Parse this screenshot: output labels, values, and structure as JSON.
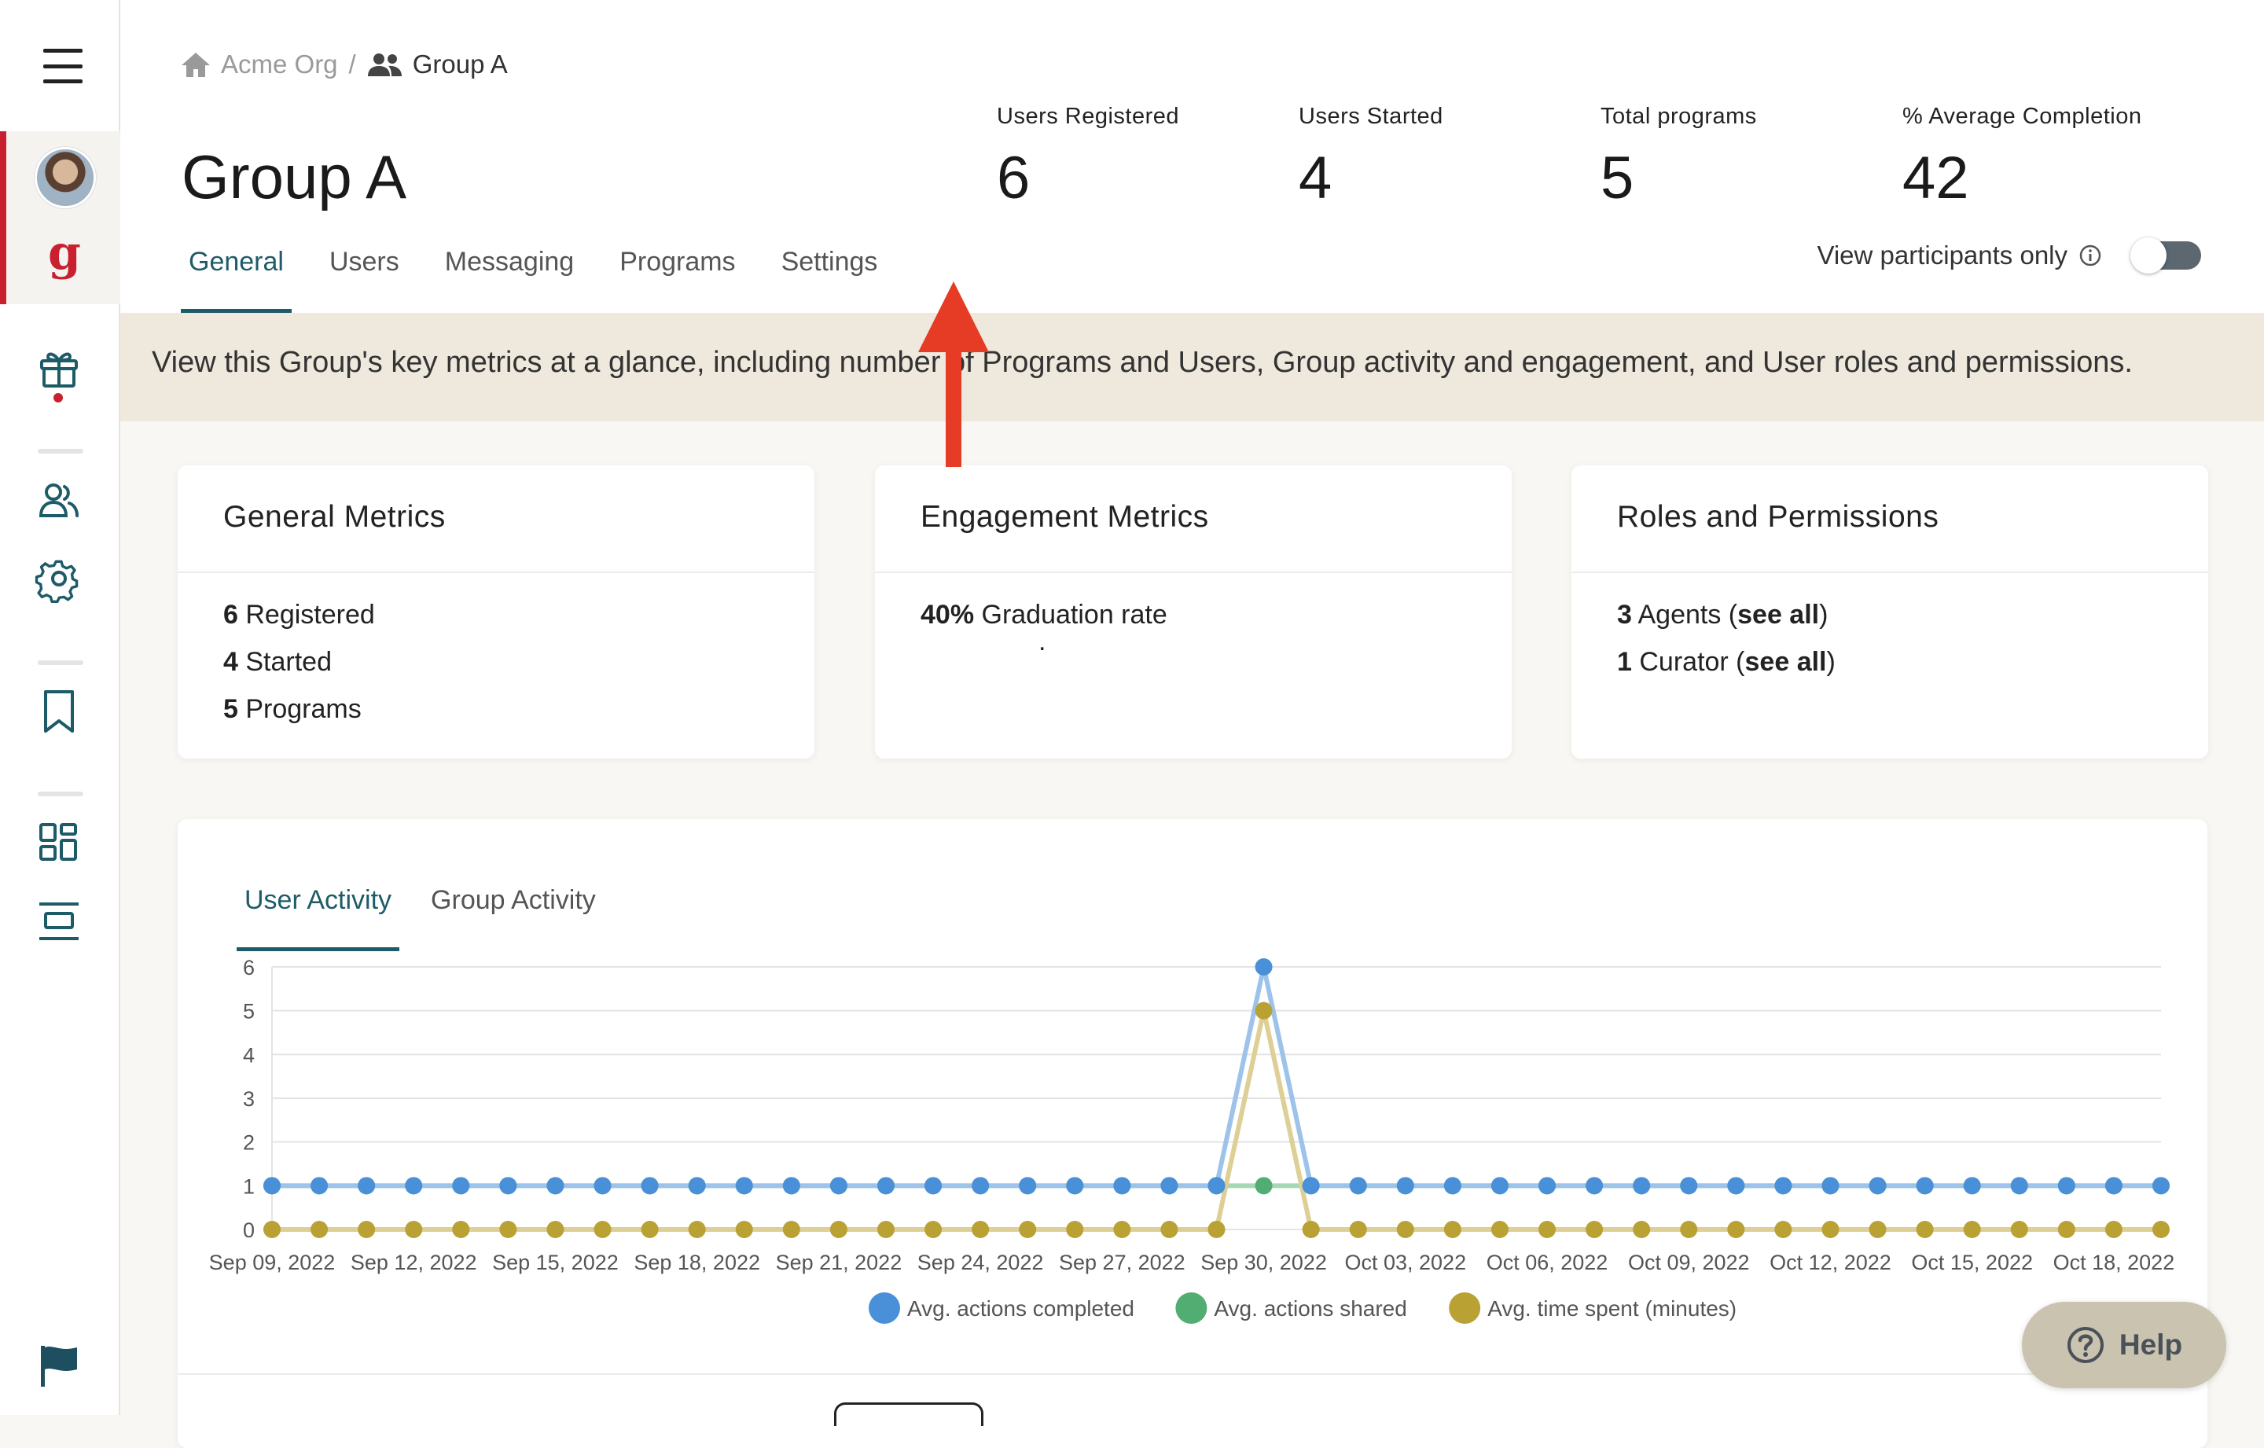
{
  "breadcrumb": {
    "org": "Acme Org",
    "separator": "/",
    "group": "Group A"
  },
  "page": {
    "title": "Group A"
  },
  "stats": [
    {
      "label": "Users Registered",
      "value": "6"
    },
    {
      "label": "Users Started",
      "value": "4"
    },
    {
      "label": "Total programs",
      "value": "5"
    },
    {
      "label": "% Average Completion",
      "value": "42"
    }
  ],
  "tabs": [
    {
      "label": "General",
      "active": true
    },
    {
      "label": "Users",
      "active": false
    },
    {
      "label": "Messaging",
      "active": false
    },
    {
      "label": "Programs",
      "active": false
    },
    {
      "label": "Settings",
      "active": false
    }
  ],
  "view_toggle": {
    "label": "View participants only",
    "on": false
  },
  "banner": {
    "text": "View this Group's key metrics at a glance, including number of Programs and Users, Group activity and engagement, and User roles and permissions."
  },
  "cards": {
    "general": {
      "title": "General Metrics",
      "rows": [
        {
          "num": "6",
          "text": " Registered"
        },
        {
          "num": "4",
          "text": " Started"
        },
        {
          "num": "5",
          "text": " Programs"
        }
      ]
    },
    "engagement": {
      "title": "Engagement Metrics",
      "rows": [
        {
          "num": "40%",
          "text": " Graduation rate"
        }
      ],
      "dot": "."
    },
    "roles": {
      "title": "Roles and Permissions",
      "rows": [
        {
          "num": "3",
          "pre": " Agents (",
          "link": "see all",
          "post": ")"
        },
        {
          "num": "1",
          "pre": " Curator (",
          "link": "see all",
          "post": ")"
        }
      ]
    }
  },
  "chart_tabs": [
    {
      "label": "User Activity",
      "active": true
    },
    {
      "label": "Group Activity",
      "active": false
    }
  ],
  "chart_data": {
    "type": "line",
    "x": [
      "Sep 09, 2022",
      "Sep 10, 2022",
      "Sep 11, 2022",
      "Sep 12, 2022",
      "Sep 13, 2022",
      "Sep 14, 2022",
      "Sep 15, 2022",
      "Sep 16, 2022",
      "Sep 17, 2022",
      "Sep 18, 2022",
      "Sep 19, 2022",
      "Sep 20, 2022",
      "Sep 21, 2022",
      "Sep 22, 2022",
      "Sep 23, 2022",
      "Sep 24, 2022",
      "Sep 25, 2022",
      "Sep 26, 2022",
      "Sep 27, 2022",
      "Sep 28, 2022",
      "Sep 29, 2022",
      "Sep 30, 2022",
      "Oct 01, 2022",
      "Oct 02, 2022",
      "Oct 03, 2022",
      "Oct 04, 2022",
      "Oct 05, 2022",
      "Oct 06, 2022",
      "Oct 07, 2022",
      "Oct 08, 2022",
      "Oct 09, 2022",
      "Oct 10, 2022",
      "Oct 11, 2022",
      "Oct 12, 2022",
      "Oct 13, 2022",
      "Oct 14, 2022",
      "Oct 15, 2022",
      "Oct 16, 2022",
      "Oct 17, 2022",
      "Oct 18, 2022",
      "Oct 19, 2022"
    ],
    "x_tick_labels": [
      "Sep 09, 2022",
      "Sep 12, 2022",
      "Sep 15, 2022",
      "Sep 18, 2022",
      "Sep 21, 2022",
      "Sep 24, 2022",
      "Sep 27, 2022",
      "Sep 30, 2022",
      "Oct 03, 2022",
      "Oct 06, 2022",
      "Oct 09, 2022",
      "Oct 12, 2022",
      "Oct 15, 2022",
      "Oct 18, 2022"
    ],
    "y_ticks": [
      0,
      1,
      2,
      3,
      4,
      5,
      6
    ],
    "ylim": [
      0,
      6
    ],
    "grid": true,
    "legend": "bottom",
    "series": [
      {
        "name": "Avg. actions completed",
        "color": "#4a90d9",
        "line_color": "#9dc3ea",
        "values": [
          1,
          1,
          1,
          1,
          1,
          1,
          1,
          1,
          1,
          1,
          1,
          1,
          1,
          1,
          1,
          1,
          1,
          1,
          1,
          1,
          1,
          6,
          1,
          1,
          1,
          1,
          1,
          1,
          1,
          1,
          1,
          1,
          1,
          1,
          1,
          1,
          1,
          1,
          1,
          1,
          1
        ]
      },
      {
        "name": "Avg. actions shared",
        "color": "#52ad72",
        "line_color": "#a6d7b5",
        "values": [
          1,
          1,
          1,
          1,
          1,
          1,
          1,
          1,
          1,
          1,
          1,
          1,
          1,
          1,
          1,
          1,
          1,
          1,
          1,
          1,
          1,
          1,
          1,
          1,
          1,
          1,
          1,
          1,
          1,
          1,
          1,
          1,
          1,
          1,
          1,
          1,
          1,
          1,
          1,
          1,
          1
        ]
      },
      {
        "name": "Avg. time spent (minutes)",
        "color": "#b9a134",
        "line_color": "#ddcf95",
        "values": [
          0,
          0,
          0,
          0,
          0,
          0,
          0,
          0,
          0,
          0,
          0,
          0,
          0,
          0,
          0,
          0,
          0,
          0,
          0,
          0,
          0,
          5,
          0,
          0,
          0,
          0,
          0,
          0,
          0,
          0,
          0,
          0,
          0,
          0,
          0,
          0,
          0,
          0,
          0,
          0,
          0
        ]
      }
    ]
  },
  "help": {
    "label": "Help"
  }
}
